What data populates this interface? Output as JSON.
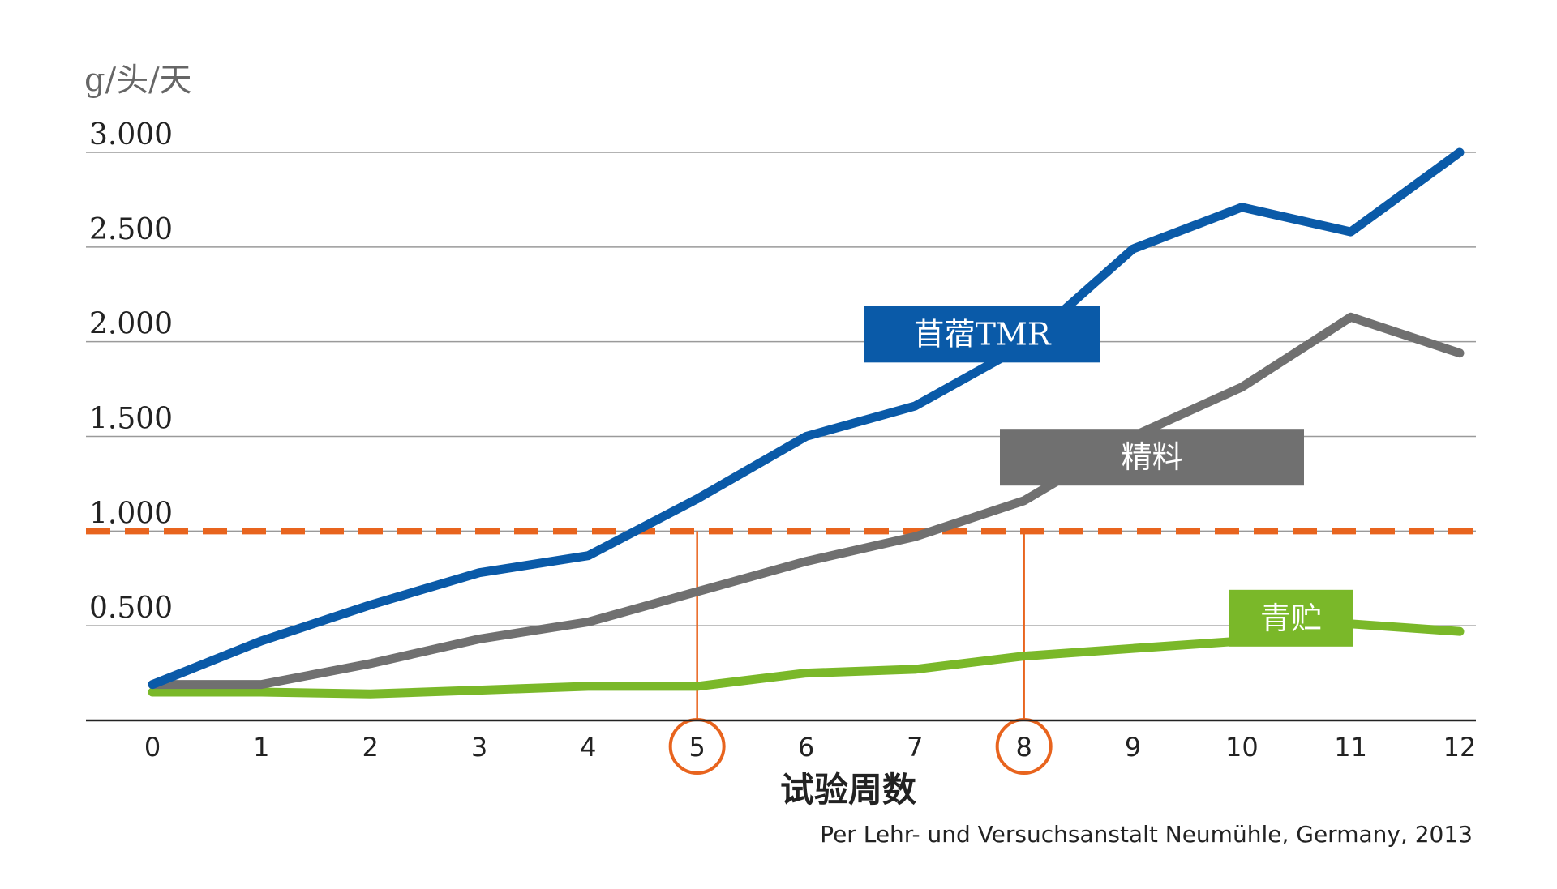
{
  "chart_data": {
    "type": "line",
    "ylabel": "g/头/天",
    "xlabel": "试验周数",
    "source": "Per Lehr- und Versuchsanstalt Neumühle, Germany, 2013",
    "ylim": [
      0,
      3000
    ],
    "y_ticks": [
      {
        "value": 500,
        "label": "0.500"
      },
      {
        "value": 1000,
        "label": "1.000"
      },
      {
        "value": 1500,
        "label": "1.500"
      },
      {
        "value": 2000,
        "label": "2.000"
      },
      {
        "value": 2500,
        "label": "2.500"
      },
      {
        "value": 3000,
        "label": "3.000"
      }
    ],
    "x": [
      0,
      1,
      2,
      3,
      4,
      5,
      6,
      7,
      8,
      9,
      10,
      11,
      12
    ],
    "x_tick_labels": [
      "0",
      "1",
      "2",
      "3",
      "4",
      "5",
      "6",
      "7",
      "8",
      "9",
      "10",
      "11",
      "12"
    ],
    "grid": true,
    "series": [
      {
        "name": "苜蓿TMR",
        "color": "#0a5aa8",
        "values": [
          190,
          420,
          610,
          780,
          870,
          1170,
          1500,
          1660,
          1980,
          2490,
          2710,
          2580,
          3000
        ]
      },
      {
        "name": "精料",
        "color": "#707070",
        "values": [
          190,
          190,
          300,
          430,
          520,
          680,
          840,
          970,
          1160,
          1500,
          1760,
          2130,
          1940
        ]
      },
      {
        "name": "青贮",
        "color": "#7ab829",
        "values": [
          150,
          150,
          140,
          160,
          180,
          180,
          250,
          270,
          340,
          380,
          420,
          510,
          470
        ]
      }
    ],
    "threshold": {
      "value": 1000,
      "color": "#e8641e",
      "style": "dashed"
    },
    "highlighted_x": [
      5,
      8
    ],
    "highlight_color": "#e8641e"
  }
}
